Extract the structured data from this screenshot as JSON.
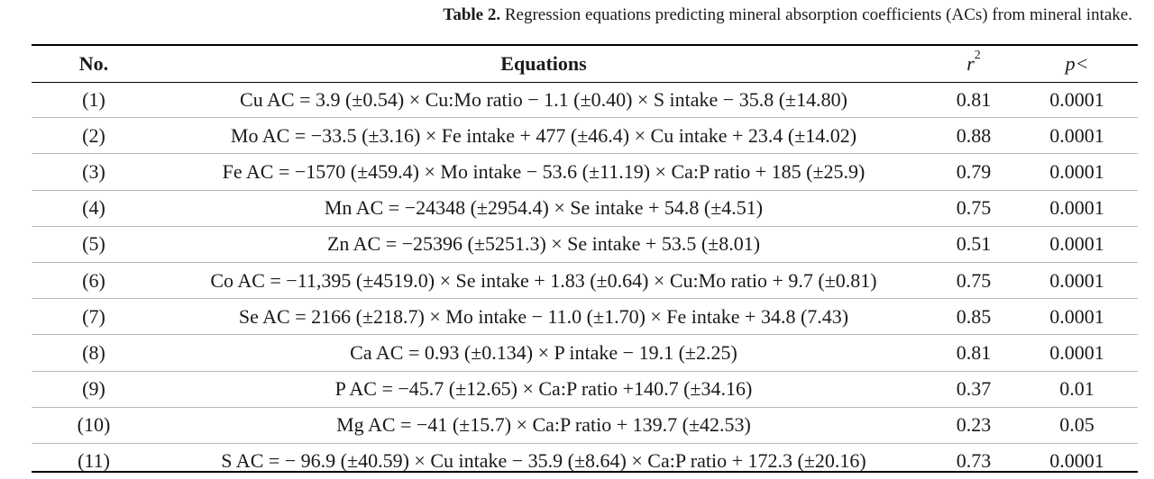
{
  "caption": {
    "label": "Table 2.",
    "text": "Regression equations predicting mineral absorption coefficients (ACs) from mineral intake."
  },
  "table": {
    "headers": {
      "no": "No.",
      "equations": "Equations",
      "r2_base": "r",
      "r2_exp": "2",
      "p": "p<"
    },
    "rows": [
      {
        "no": "(1)",
        "equation": "Cu AC = 3.9 (±0.54) × Cu:Mo ratio − 1.1 (±0.40) × S intake − 35.8 (±14.80)",
        "r2": "0.81",
        "p": "0.0001"
      },
      {
        "no": "(2)",
        "equation": "Mo AC = −33.5 (±3.16) × Fe intake + 477 (±46.4) × Cu intake + 23.4 (±14.02)",
        "r2": "0.88",
        "p": "0.0001"
      },
      {
        "no": "(3)",
        "equation": "Fe AC = −1570 (±459.4) × Mo intake − 53.6 (±11.19) × Ca:P ratio + 185 (±25.9)",
        "r2": "0.79",
        "p": "0.0001"
      },
      {
        "no": "(4)",
        "equation": "Mn AC = −24348 (±2954.4) × Se intake + 54.8 (±4.51)",
        "r2": "0.75",
        "p": "0.0001"
      },
      {
        "no": "(5)",
        "equation": "Zn AC = −25396 (±5251.3) × Se intake + 53.5 (±8.01)",
        "r2": "0.51",
        "p": "0.0001"
      },
      {
        "no": "(6)",
        "equation": "Co AC = −11,395 (±4519.0) × Se intake + 1.83 (±0.64) × Cu:Mo ratio + 9.7 (±0.81)",
        "r2": "0.75",
        "p": "0.0001"
      },
      {
        "no": "(7)",
        "equation": "Se AC = 2166 (±218.7) × Mo intake − 11.0 (±1.70) × Fe intake + 34.8 (7.43)",
        "r2": "0.85",
        "p": "0.0001"
      },
      {
        "no": "(8)",
        "equation": "Ca AC = 0.93 (±0.134) × P intake − 19.1 (±2.25)",
        "r2": "0.81",
        "p": "0.0001"
      },
      {
        "no": "(9)",
        "equation": "P AC = −45.7 (±12.65) × Ca:P ratio +140.7 (±34.16)",
        "r2": "0.37",
        "p": "0.01"
      },
      {
        "no": "(10)",
        "equation": "Mg AC = −41 (±15.7) × Ca:P ratio + 139.7 (±42.53)",
        "r2": "0.23",
        "p": "0.05"
      },
      {
        "no": "(11)",
        "equation": "S AC = − 96.9 (±40.59) × Cu intake − 35.9 (±8.64) × Ca:P ratio + 172.3 (±20.16)",
        "r2": "0.73",
        "p": "0.0001"
      }
    ]
  }
}
